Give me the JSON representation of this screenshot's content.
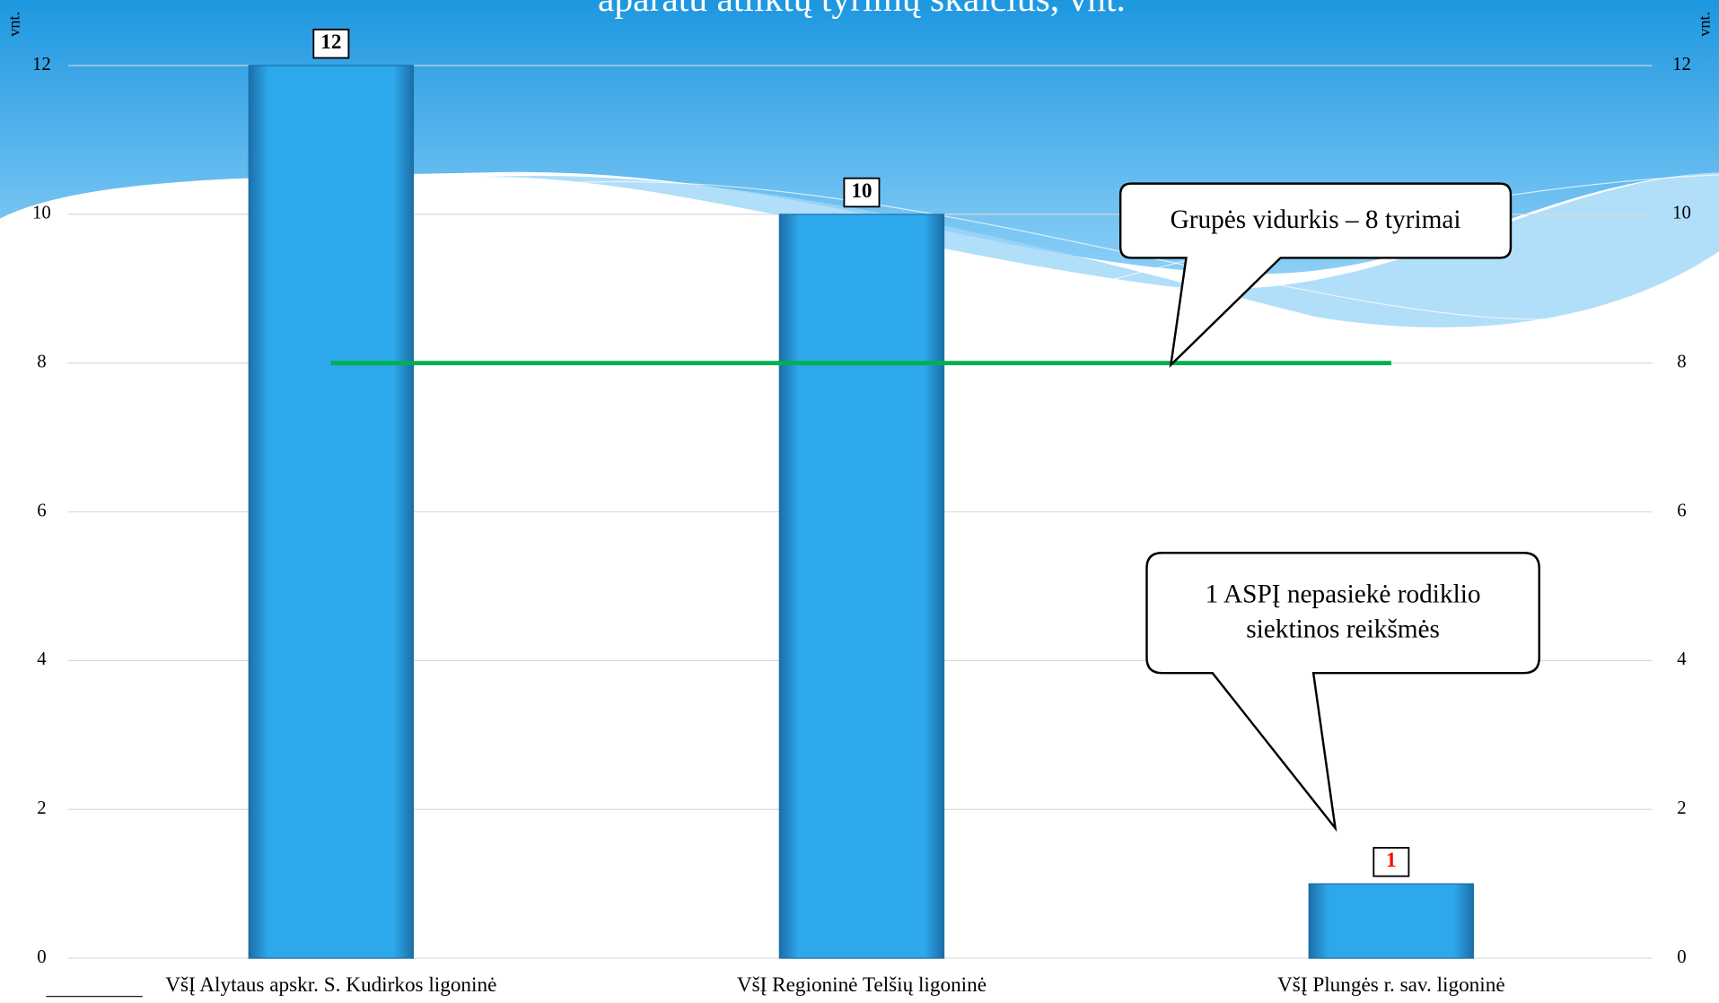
{
  "chart_data": {
    "type": "bar",
    "title": "aparatu atliktų tyrimų skaičius, vnt.",
    "y_label": "vnt.",
    "y2_label": "vnt.",
    "categories": [
      "VšĮ Alytaus apskr. S. Kudirkos ligoninė",
      "VšĮ Regioninė Telšių  ligoninė",
      "VšĮ Plungės r. sav. ligoninė"
    ],
    "values": [
      12,
      10,
      1
    ],
    "label_colors": [
      "#000000",
      "#000000",
      "#ff0000"
    ],
    "color": "#2ea8ec",
    "average": 8,
    "average_color": "#00b050",
    "ylim": [
      0,
      12
    ],
    "yticks": [
      0,
      2,
      4,
      6,
      8,
      10,
      12
    ],
    "y2lim": [
      0,
      12
    ],
    "y2ticks": [
      0,
      2,
      4,
      6,
      8,
      10,
      12
    ],
    "grid": true,
    "annotations": [
      "Grupės vidurkis – 8 tyrimai",
      "1 ASPĮ nepasiekė rodiklio",
      "siektinos reikšmės"
    ]
  }
}
